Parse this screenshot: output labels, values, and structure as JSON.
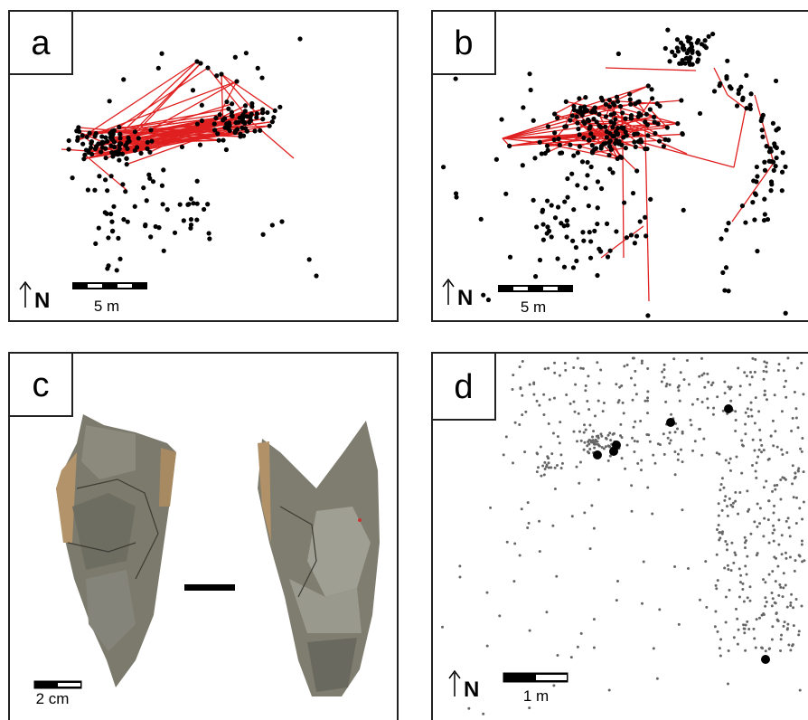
{
  "panels": [
    {
      "label": "a",
      "north": "N",
      "scale": "5 m"
    },
    {
      "label": "b",
      "north": "N",
      "scale": "5 m"
    },
    {
      "label": "c",
      "scale": "2 cm"
    },
    {
      "label": "d",
      "north": "N",
      "scale": "1 m"
    }
  ]
}
